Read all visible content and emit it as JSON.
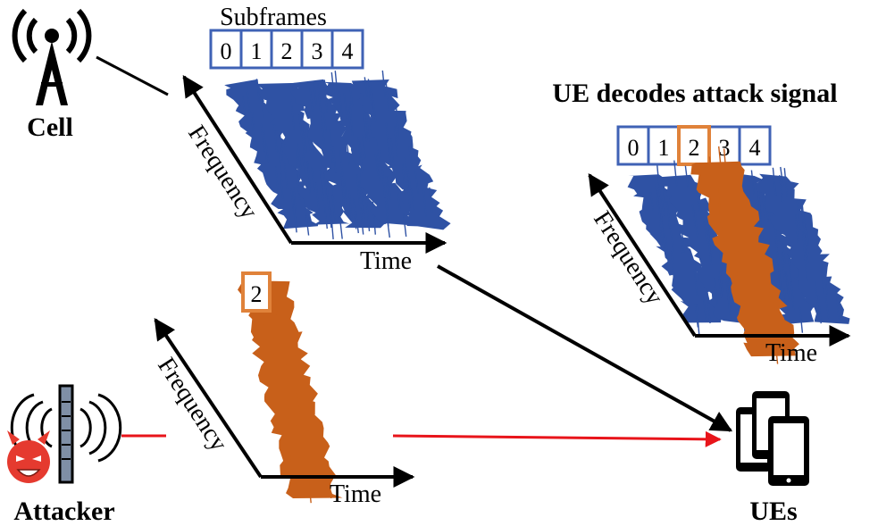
{
  "labels": {
    "cell": "Cell",
    "attacker": "Attacker",
    "ues": "UEs",
    "subframes_title": "Subframes",
    "ue_decodes_title": "UE decodes attack signal",
    "frequency": "Frequency",
    "time": "Time"
  },
  "subframes": [
    "0",
    "1",
    "2",
    "3",
    "4"
  ],
  "attack_subframe": "2",
  "colors": {
    "legit_signal": "#2f52a4",
    "attack_signal": "#c8601a",
    "box_blue": "#3f62b5",
    "box_orange": "#e0823a",
    "red_arrow": "#e8141a",
    "black": "#000000",
    "devil": "#e53a2f"
  }
}
